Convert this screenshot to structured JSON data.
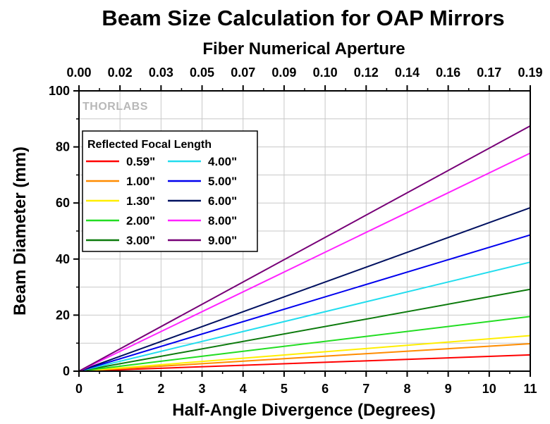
{
  "chart_data": {
    "type": "line",
    "title": "Beam Size Calculation for OAP Mirrors",
    "xlabel": "Half-Angle Divergence (Degrees)",
    "ylabel": "Beam Diameter (mm)",
    "x2label": "Fiber Numerical Aperture",
    "xlim": [
      0,
      11
    ],
    "ylim": [
      0,
      100
    ],
    "x_ticks": [
      "0",
      "1",
      "2",
      "3",
      "4",
      "5",
      "6",
      "7",
      "8",
      "9",
      "10",
      "11"
    ],
    "y_ticks": [
      "0",
      "20",
      "40",
      "60",
      "80",
      "100"
    ],
    "x2_ticks": [
      "0.00",
      "0.02",
      "0.03",
      "0.05",
      "0.07",
      "0.09",
      "0.10",
      "0.12",
      "0.14",
      "0.16",
      "0.17",
      "0.19"
    ],
    "grid": true,
    "legend": {
      "title": "Reflected Focal Length",
      "position": "upper-left"
    },
    "watermark": "THORLABS",
    "series": [
      {
        "name": "0.59\"",
        "color": "#ff0000",
        "x": [
          0,
          11
        ],
        "y": [
          0,
          5.8
        ]
      },
      {
        "name": "1.00\"",
        "color": "#ff8c00",
        "x": [
          0,
          11
        ],
        "y": [
          0,
          9.8
        ]
      },
      {
        "name": "1.30\"",
        "color": "#ffee00",
        "x": [
          0,
          11
        ],
        "y": [
          0,
          12.7
        ]
      },
      {
        "name": "2.00\"",
        "color": "#22dd22",
        "x": [
          0,
          11
        ],
        "y": [
          0,
          19.5
        ]
      },
      {
        "name": "3.00\"",
        "color": "#0c7a0c",
        "x": [
          0,
          11
        ],
        "y": [
          0,
          29.2
        ]
      },
      {
        "name": "4.00\"",
        "color": "#22ddee",
        "x": [
          0,
          11
        ],
        "y": [
          0,
          38.9
        ]
      },
      {
        "name": "5.00\"",
        "color": "#0000ee",
        "x": [
          0,
          11
        ],
        "y": [
          0,
          48.6
        ]
      },
      {
        "name": "6.00\"",
        "color": "#001060",
        "x": [
          0,
          11
        ],
        "y": [
          0,
          58.3
        ]
      },
      {
        "name": "8.00\"",
        "color": "#ff22ff",
        "x": [
          0,
          11
        ],
        "y": [
          0,
          77.8
        ]
      },
      {
        "name": "9.00\"",
        "color": "#770077",
        "x": [
          0,
          11
        ],
        "y": [
          0,
          87.5
        ]
      }
    ]
  }
}
